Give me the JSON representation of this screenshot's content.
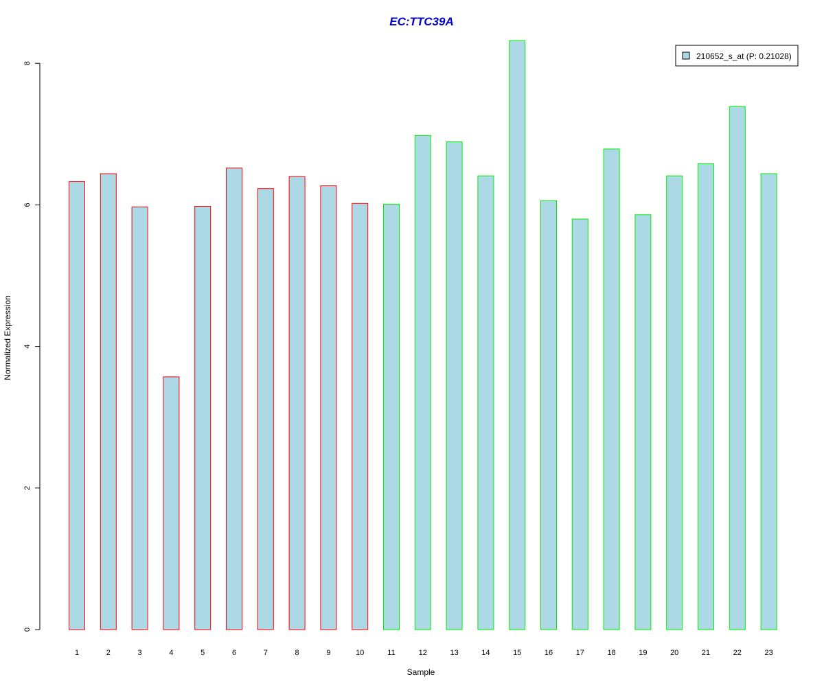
{
  "chart_data": {
    "type": "bar",
    "title": "EC:TTC39A",
    "xlabel": "Sample",
    "ylabel": "Normalized Expression",
    "categories": [
      "1",
      "2",
      "3",
      "4",
      "5",
      "6",
      "7",
      "8",
      "9",
      "10",
      "11",
      "12",
      "13",
      "14",
      "15",
      "16",
      "17",
      "18",
      "19",
      "20",
      "21",
      "22",
      "23"
    ],
    "series": [
      {
        "name": "210652_s_at (P: 0.21028)",
        "values": [
          6.33,
          6.44,
          5.97,
          3.57,
          5.98,
          6.52,
          6.23,
          6.4,
          6.27,
          6.02,
          6.01,
          6.98,
          6.89,
          6.41,
          8.32,
          6.06,
          5.8,
          6.79,
          5.86,
          6.41,
          6.58,
          7.39,
          6.44
        ]
      }
    ],
    "group_outline": [
      "red",
      "red",
      "red",
      "red",
      "red",
      "red",
      "red",
      "red",
      "red",
      "red",
      "green",
      "green",
      "green",
      "green",
      "green",
      "green",
      "green",
      "green",
      "green",
      "green",
      "green",
      "green",
      "green"
    ],
    "yticks": [
      0,
      2,
      4,
      6,
      8
    ],
    "ylim": [
      0,
      8.32
    ],
    "grid": false,
    "legend_position": "top-right",
    "colors": {
      "bar_fill": "#add8e6",
      "red_outline": "#ff0000",
      "green_outline": "#00ee00",
      "title": "#0000cc",
      "axis": "#000000"
    }
  }
}
